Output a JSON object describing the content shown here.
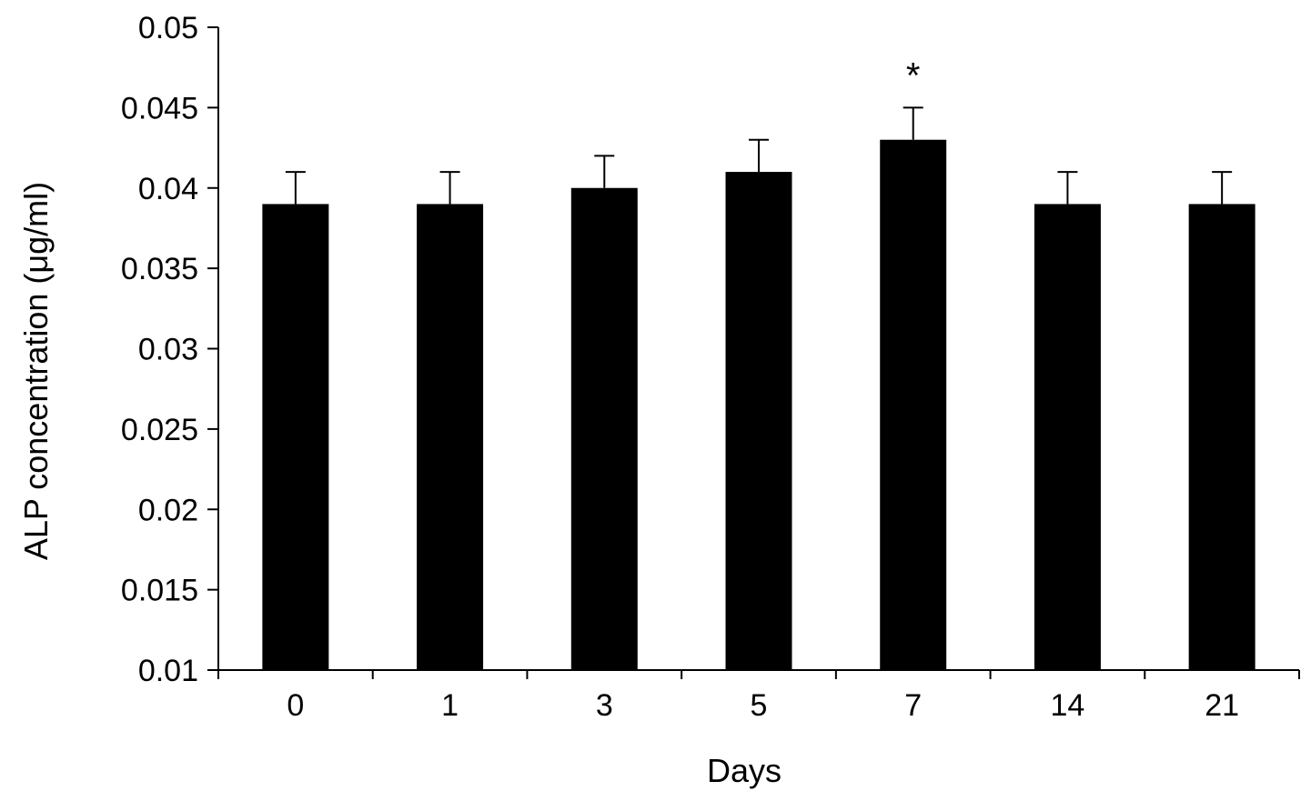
{
  "chart_data": {
    "type": "bar",
    "title": "",
    "xlabel": "Days",
    "ylabel": "ALP concentration (μg/ml)",
    "categories": [
      "0",
      "1",
      "3",
      "5",
      "7",
      "14",
      "21"
    ],
    "values": [
      0.039,
      0.039,
      0.04,
      0.041,
      0.043,
      0.039,
      0.039
    ],
    "error": [
      0.002,
      0.002,
      0.002,
      0.002,
      0.002,
      0.002,
      0.002
    ],
    "ylim": [
      0.01,
      0.05
    ],
    "yticks": [
      "0.01",
      "0.015",
      "0.02",
      "0.025",
      "0.03",
      "0.035",
      "0.04",
      "0.045",
      "0.05"
    ],
    "annotations": [
      {
        "category": "7",
        "text": "*"
      }
    ],
    "grid": false,
    "legend": "none",
    "bar_color": "#000000"
  }
}
